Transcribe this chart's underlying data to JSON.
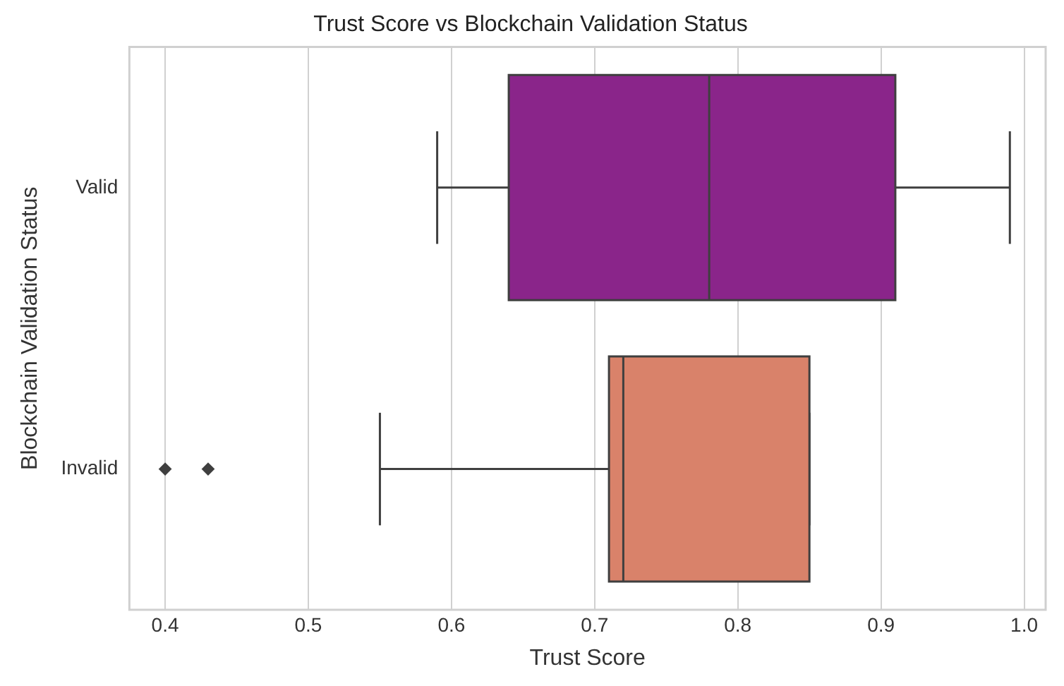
{
  "chart_data": {
    "type": "box",
    "orientation": "horizontal",
    "title": "Trust Score vs Blockchain Validation Status",
    "xlabel": "Trust Score",
    "ylabel": "Blockchain Validation Status",
    "categories": [
      "Valid",
      "Invalid"
    ],
    "colors": [
      "#8a258a",
      "#d9826a"
    ],
    "boxes": [
      {
        "low": 0.59,
        "q1": 0.64,
        "median": 0.78,
        "q3": 0.91,
        "high": 0.99
      },
      {
        "low": 0.55,
        "q1": 0.71,
        "median": 0.72,
        "q3": 0.85,
        "high": 0.85,
        "outliers": [
          0.4,
          0.43
        ]
      }
    ],
    "xlim": [
      0.375,
      1.015
    ],
    "xticks": [
      0.4,
      0.5,
      0.6,
      0.7,
      0.8,
      0.9,
      {
        "value": 1,
        "label": "1.0"
      }
    ],
    "grid": "x"
  }
}
